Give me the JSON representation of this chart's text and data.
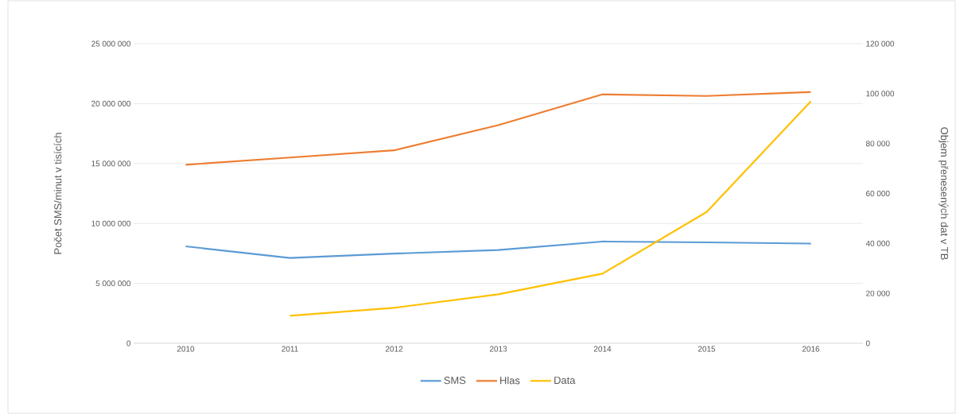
{
  "chart_data": {
    "type": "line",
    "ylabel": "Počet SMS/minut v tisících",
    "y2label": "Objem přenesených dat v TB",
    "categories": [
      "2010",
      "2011",
      "2012",
      "2013",
      "2014",
      "2015",
      "2016"
    ],
    "series": [
      {
        "name": "SMS",
        "color": "#5b9bd5",
        "values": [
          8090000,
          7120000,
          7480000,
          7780000,
          8490000,
          8420000,
          8320000
        ]
      },
      {
        "name": "Hlas",
        "color": "#ed7d31",
        "values": [
          14900000,
          15500000,
          16100000,
          18200000,
          20770000,
          20640000,
          20970000
        ]
      },
      {
        "name": "Data",
        "color": "#ffc000",
        "axis": "y2",
        "values": [
          null,
          11000,
          14200,
          19600,
          27900,
          52600,
          96900
        ]
      }
    ],
    "ylim": [
      0,
      25000000
    ],
    "yticks": [
      {
        "value": 0,
        "label": "0"
      },
      {
        "value": 5000000,
        "label": "5 000 000"
      },
      {
        "value": 10000000,
        "label": "10 000 000"
      },
      {
        "value": 15000000,
        "label": "15 000 000"
      },
      {
        "value": 20000000,
        "label": "20 000 000"
      },
      {
        "value": 25000000,
        "label": "25 000 000"
      }
    ],
    "y2lim": [
      0,
      120000
    ],
    "y2ticks": [
      {
        "value": 0,
        "label": "0"
      },
      {
        "value": 20000,
        "label": "20 000"
      },
      {
        "value": 40000,
        "label": "40 000"
      },
      {
        "value": 60000,
        "label": "60 000"
      },
      {
        "value": 80000,
        "label": "80 000"
      },
      {
        "value": 100000,
        "label": "100 000"
      },
      {
        "value": 120000,
        "label": "120 000"
      }
    ],
    "grid": "y",
    "legend": "bottom",
    "marker": "none",
    "line_style": "solid"
  }
}
